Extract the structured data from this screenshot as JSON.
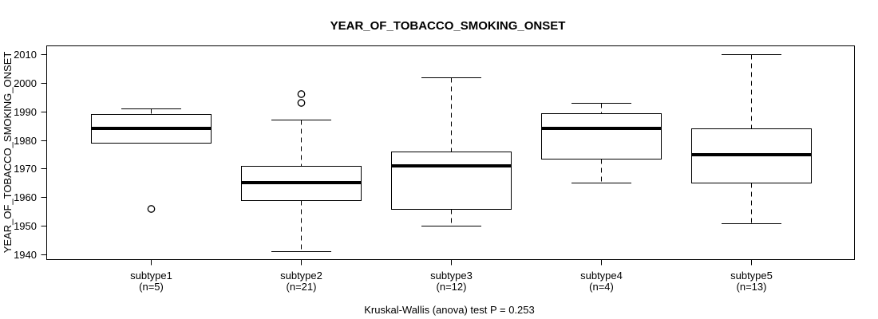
{
  "chart_data": {
    "type": "boxplot",
    "title": "YEAR_OF_TOBACCO_SMOKING_ONSET",
    "ylabel": "YEAR_OF_TOBACCO_SMOKING_ONSET",
    "xlabel": "",
    "caption": "Kruskal-Wallis (anova) test P = 0.253",
    "ylim": [
      1938,
      2013
    ],
    "yticks": [
      1940,
      1950,
      1960,
      1970,
      1980,
      1990,
      2000,
      2010
    ],
    "grid": false,
    "legend": "none",
    "colors": {
      "line": "#000000",
      "box_fill": "#ffffff",
      "background": "#ffffff"
    },
    "categories": [
      "subtype1",
      "subtype2",
      "subtype3",
      "subtype4",
      "subtype5"
    ],
    "category_sublabels": [
      "(n=5)",
      "(n=21)",
      "(n=12)",
      "(n=4)",
      "(n=13)"
    ],
    "series": [
      {
        "name": "subtype1",
        "n": 5,
        "whisker_low": 1979,
        "q1": 1979,
        "median": 1984,
        "q3": 1989,
        "whisker_high": 1991,
        "outliers": [
          1956
        ]
      },
      {
        "name": "subtype2",
        "n": 21,
        "whisker_low": 1941,
        "q1": 1959,
        "median": 1965,
        "q3": 1971,
        "whisker_high": 1987,
        "outliers": [
          1993,
          1996
        ]
      },
      {
        "name": "subtype3",
        "n": 12,
        "whisker_low": 1950,
        "q1": 1956,
        "median": 1971,
        "q3": 1976,
        "whisker_high": 2002,
        "outliers": []
      },
      {
        "name": "subtype4",
        "n": 4,
        "whisker_low": 1965,
        "q1": 1973.5,
        "median": 1984,
        "q3": 1989.5,
        "whisker_high": 1993,
        "outliers": []
      },
      {
        "name": "subtype5",
        "n": 13,
        "whisker_low": 1951,
        "q1": 1965,
        "median": 1975,
        "q3": 1984,
        "whisker_high": 2010,
        "outliers": []
      }
    ]
  }
}
